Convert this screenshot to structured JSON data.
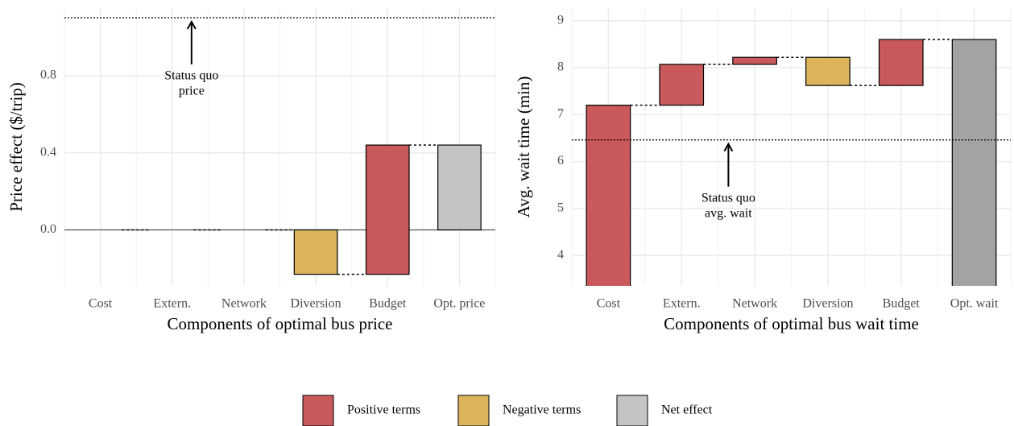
{
  "chart_data": [
    {
      "type": "waterfall",
      "x_label": "Components of optimal bus price",
      "y_label": "Price effect ($/trip)",
      "categories": [
        "Cost",
        "Extern.",
        "Network",
        "Diversion",
        "Budget",
        "Opt. price"
      ],
      "series": [
        {
          "color": "#c9595a",
          "values": [
            0,
            0,
            0,
            null,
            0.67,
            null
          ]
        },
        {
          "color": "#dbb45b",
          "values": [
            null,
            null,
            null,
            -0.23,
            null,
            null
          ]
        },
        {
          "color": "#c4c4c4",
          "net": true,
          "values": [
            null,
            null,
            null,
            null,
            null,
            0.44
          ]
        }
      ],
      "ylim": [
        -0.29,
        1.15
      ],
      "yticks": [
        {
          "value": 0,
          "label": "0.0"
        },
        0.4,
        0.8
      ],
      "grid": true,
      "reference_line": {
        "value": 1.1,
        "label": [
          "Status quo",
          "price"
        ]
      }
    },
    {
      "type": "waterfall",
      "x_label": "Components of optimal bus wait time",
      "y_label": "Avg. wait time (min)",
      "categories": [
        "Cost",
        "Extern.",
        "Network",
        "Diversion",
        "Budget",
        "Opt. wait"
      ],
      "series": [
        {
          "color": "#c9595a",
          "values": [
            7.2,
            0.87,
            0.15,
            null,
            0.98,
            null
          ]
        },
        {
          "color": "#dbb45b",
          "values": [
            null,
            null,
            null,
            -0.6,
            null,
            null
          ]
        },
        {
          "color": "#a3a3a3",
          "net": true,
          "values": [
            null,
            null,
            null,
            null,
            null,
            8.6
          ]
        }
      ],
      "ylim": [
        3.35,
        9.27
      ],
      "yticks": [
        4,
        5,
        6,
        7,
        8,
        9
      ],
      "grid": true,
      "reference_line": {
        "value": 6.46,
        "label": [
          "Status quo",
          "avg. wait"
        ]
      }
    }
  ],
  "legend": {
    "items": [
      {
        "name": "Positive terms",
        "color": "#c9595a"
      },
      {
        "name": "Negative terms",
        "color": "#dbb45b"
      },
      {
        "name": "Net effect",
        "color": "#c4c4c4"
      }
    ]
  }
}
